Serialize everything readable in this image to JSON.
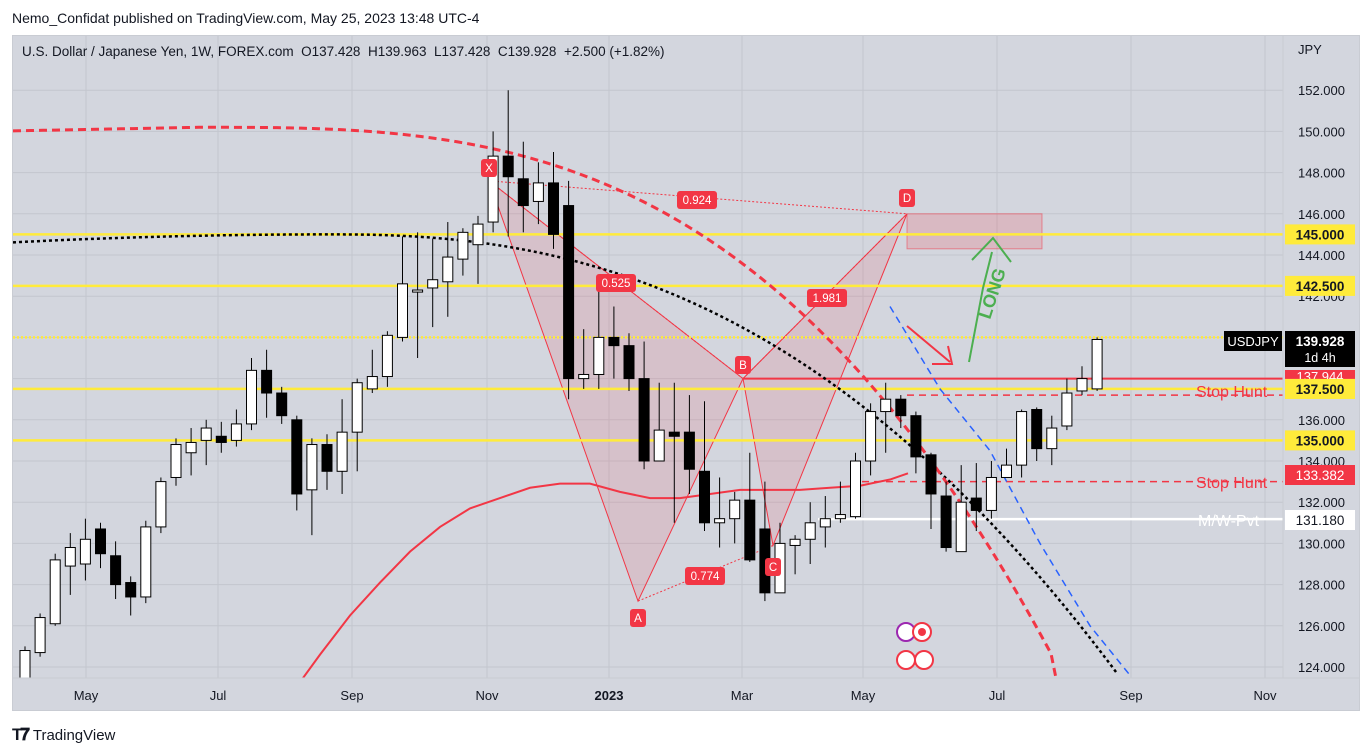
{
  "publisher": {
    "line": "Nemo_Confidat published on TradingView.com, May 25, 2023 13:48 UTC-4"
  },
  "header": {
    "symbol": "U.S. Dollar / Japanese Yen, 1W, FOREX.com",
    "open": "O137.428",
    "high": "H139.963",
    "low": "L137.428",
    "close": "C139.928",
    "change": "+2.500 (+1.82%)"
  },
  "brand": {
    "name": "TradingView"
  },
  "colors": {
    "background": "#d3d6de",
    "up_candle": "#ffffff",
    "down_candle": "#000000",
    "yellow": "#ffeb3b",
    "red": "#f23645",
    "green": "#4caf50",
    "blue": "#2962ff",
    "white": "#ffffff"
  },
  "chart_data": {
    "type": "candlestick",
    "y_axis": {
      "unit": "JPY",
      "ylim": [
        122.8,
        153.6
      ],
      "ticks": [
        "152.000",
        "150.000",
        "148.000",
        "146.000",
        "144.000",
        "142.000",
        "140.000",
        "138.000",
        "136.000",
        "134.000",
        "132.000",
        "130.000",
        "128.000",
        "126.000",
        "124.000"
      ]
    },
    "x_axis": {
      "ticks": [
        "May",
        "Jul",
        "Sep",
        "Nov",
        "2023",
        "Mar",
        "May",
        "Jul",
        "Sep",
        "Nov"
      ]
    },
    "candles": [
      [
        122.3,
        124.8,
        122.0,
        125.0
      ],
      [
        124.7,
        126.4,
        124.5,
        126.6
      ],
      [
        126.1,
        129.2,
        126.0,
        129.5
      ],
      [
        128.9,
        129.8,
        127.5,
        130.5
      ],
      [
        129.0,
        130.2,
        128.2,
        131.2
      ],
      [
        130.7,
        129.5,
        128.8,
        131.0
      ],
      [
        129.4,
        128.0,
        127.3,
        130.1
      ],
      [
        128.1,
        127.4,
        126.5,
        128.4
      ],
      [
        127.4,
        130.8,
        127.1,
        131.1
      ],
      [
        130.8,
        133.0,
        130.5,
        133.2
      ],
      [
        133.2,
        134.8,
        132.8,
        135.1
      ],
      [
        134.4,
        134.9,
        133.3,
        135.6
      ],
      [
        135.0,
        135.6,
        133.8,
        136.0
      ],
      [
        135.2,
        134.9,
        134.4,
        135.9
      ],
      [
        135.0,
        135.8,
        134.7,
        136.5
      ],
      [
        135.8,
        138.4,
        135.5,
        139.0
      ],
      [
        138.4,
        137.3,
        136.1,
        139.4
      ],
      [
        137.3,
        136.2,
        135.8,
        137.6
      ],
      [
        136.0,
        132.4,
        131.6,
        136.2
      ],
      [
        132.6,
        134.8,
        130.4,
        135.1
      ],
      [
        134.8,
        133.5,
        132.6,
        135.3
      ],
      [
        133.5,
        135.4,
        132.4,
        137.0
      ],
      [
        135.4,
        137.8,
        133.5,
        138.0
      ],
      [
        137.5,
        138.1,
        137.3,
        139.4
      ],
      [
        138.1,
        140.1,
        137.6,
        140.3
      ],
      [
        140.0,
        142.6,
        139.8,
        144.9
      ],
      [
        142.2,
        142.3,
        139.0,
        145.1
      ],
      [
        142.4,
        142.8,
        140.5,
        144.8
      ],
      [
        142.7,
        143.9,
        141.0,
        145.6
      ],
      [
        143.8,
        145.1,
        143.0,
        145.3
      ],
      [
        144.5,
        145.5,
        142.6,
        145.9
      ],
      [
        145.6,
        148.8,
        145.1,
        150.0
      ],
      [
        148.8,
        147.8,
        144.9,
        152.0
      ],
      [
        147.7,
        146.4,
        145.1,
        149.5
      ],
      [
        146.6,
        147.5,
        145.5,
        148.5
      ],
      [
        147.5,
        145.0,
        144.3,
        149.0
      ],
      [
        146.4,
        138.0,
        137.0,
        147.6
      ],
      [
        138.0,
        138.2,
        137.5,
        140.4
      ],
      [
        138.2,
        140.0,
        137.5,
        142.4
      ],
      [
        140.0,
        139.6,
        138.0,
        141.5
      ],
      [
        139.6,
        138.0,
        137.4,
        140.2
      ],
      [
        138.0,
        134.0,
        133.6,
        139.8
      ],
      [
        134.0,
        135.5,
        134.0,
        137.8
      ],
      [
        135.4,
        135.2,
        131.0,
        137.8
      ],
      [
        135.4,
        133.6,
        132.4,
        137.2
      ],
      [
        133.5,
        131.0,
        130.6,
        136.9
      ],
      [
        131.0,
        131.2,
        129.8,
        133.2
      ],
      [
        131.2,
        132.1,
        130.0,
        132.5
      ],
      [
        132.1,
        129.2,
        129.1,
        134.4
      ],
      [
        130.7,
        127.6,
        127.2,
        133.0
      ],
      [
        127.6,
        130.0,
        127.6,
        131.0
      ],
      [
        129.9,
        130.2,
        128.5,
        130.4
      ],
      [
        130.2,
        131.0,
        129.0,
        132.0
      ],
      [
        130.8,
        131.2,
        129.8,
        132.3
      ],
      [
        131.2,
        131.4,
        131.0,
        133.0
      ],
      [
        131.3,
        134.0,
        131.2,
        134.4
      ],
      [
        134.0,
        136.4,
        133.3,
        136.8
      ],
      [
        136.4,
        137.0,
        134.4,
        137.8
      ],
      [
        137.0,
        136.2,
        135.6,
        137.2
      ],
      [
        136.2,
        134.2,
        133.4,
        136.4
      ],
      [
        134.3,
        132.4,
        130.7,
        134.4
      ],
      [
        132.3,
        129.8,
        129.6,
        133.0
      ],
      [
        129.6,
        132.0,
        129.6,
        133.8
      ],
      [
        132.2,
        131.6,
        130.6,
        133.9
      ],
      [
        131.6,
        133.2,
        131.2,
        134.0
      ],
      [
        133.2,
        133.8,
        133.4,
        134.6
      ],
      [
        133.8,
        136.4,
        133.2,
        136.5
      ],
      [
        136.5,
        134.6,
        134.0,
        136.6
      ],
      [
        134.6,
        135.6,
        133.8,
        136.2
      ],
      [
        135.7,
        137.3,
        135.5,
        138.0
      ],
      [
        137.4,
        138.0,
        137.2,
        138.6
      ],
      [
        137.5,
        139.9,
        137.4,
        140.0
      ]
    ],
    "horizontal_levels": [
      {
        "price": 145.0,
        "label": "145.000",
        "color": "yellow"
      },
      {
        "price": 142.5,
        "label": "142.500",
        "color": "yellow"
      },
      {
        "price": 140.0,
        "label": "",
        "color": "yellow-dotted"
      },
      {
        "price": 137.5,
        "label": "137.500",
        "color": "yellow"
      },
      {
        "price": 135.0,
        "label": "135.000",
        "color": "yellow"
      }
    ],
    "price_labels": [
      {
        "symbol": "USDJPY",
        "price": "139.928",
        "countdown": "1d 4h"
      },
      {
        "price": "133.382"
      },
      {
        "price": "131.180"
      },
      {
        "price": "137.944"
      }
    ],
    "annotations": {
      "pattern_points": [
        "X",
        "A",
        "B",
        "C",
        "D"
      ],
      "ratios": [
        "0.924",
        "0.525",
        "1.981",
        "0.774"
      ],
      "texts": [
        "Stop Hunt",
        "Stop Hunt",
        "M/W-Pvt",
        "LONG"
      ]
    }
  }
}
